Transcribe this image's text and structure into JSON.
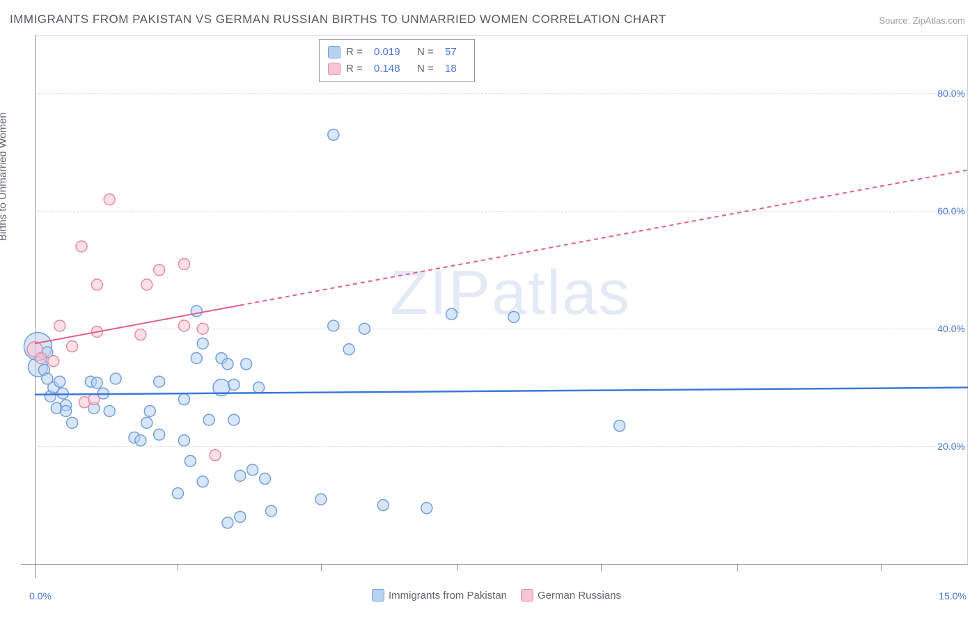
{
  "title": "IMMIGRANTS FROM PAKISTAN VS GERMAN RUSSIAN BIRTHS TO UNMARRIED WOMEN CORRELATION CHART",
  "source": "Source: ZipAtlas.com",
  "watermark_a": "ZIP",
  "watermark_b": "atlas",
  "chart": {
    "type": "scatter",
    "background_color": "#ffffff",
    "grid_color": "#dcdfe3",
    "axis_color": "#888e96",
    "y_axis_title": "Births to Unmarried Women",
    "xlim": [
      0.0,
      15.0
    ],
    "ylim": [
      0.0,
      90.0
    ],
    "y_ticks": [
      20.0,
      40.0,
      60.0,
      80.0
    ],
    "y_tick_labels": [
      "20.0%",
      "40.0%",
      "60.0%",
      "80.0%"
    ],
    "x_tick_positions": [
      2.3,
      4.6,
      6.8,
      9.1,
      11.3,
      13.6
    ],
    "x_start_label": "0.0%",
    "x_end_label": "15.0%",
    "x_label_color": "#4876d6",
    "marker_radius": 8,
    "marker_stroke_width": 1.5,
    "series": [
      {
        "name": "Immigrants from Pakistan",
        "fill": "#b9d2f0",
        "stroke": "#6f9fde",
        "fill_opacity": 0.55,
        "trend_color": "#3b78d8",
        "trend_width": 2.5,
        "trend_dash": "none",
        "trend_p1": [
          0.0,
          28.8
        ],
        "trend_p2": [
          15.0,
          30.0
        ],
        "R": "0.019",
        "N": "57",
        "points": [
          [
            0.05,
            33.5,
            14
          ],
          [
            0.05,
            37.0,
            20
          ],
          [
            0.15,
            33.0,
            8
          ],
          [
            0.2,
            31.5,
            8
          ],
          [
            0.2,
            36.0,
            8
          ],
          [
            0.25,
            28.5,
            8
          ],
          [
            0.3,
            30.0,
            8
          ],
          [
            0.35,
            26.5,
            8
          ],
          [
            0.4,
            31.0,
            8
          ],
          [
            0.45,
            29.0,
            8
          ],
          [
            0.5,
            27.0,
            8
          ],
          [
            0.5,
            26.0,
            8
          ],
          [
            0.6,
            24.0,
            8
          ],
          [
            0.9,
            31.0,
            8
          ],
          [
            0.95,
            26.5,
            8
          ],
          [
            1.0,
            30.8,
            8
          ],
          [
            1.1,
            29.0,
            8
          ],
          [
            1.2,
            26.0,
            8
          ],
          [
            1.3,
            31.5,
            8
          ],
          [
            1.6,
            21.5,
            8
          ],
          [
            1.7,
            21.0,
            8
          ],
          [
            1.8,
            24.0,
            8
          ],
          [
            1.85,
            26.0,
            8
          ],
          [
            2.0,
            22.0,
            8
          ],
          [
            2.0,
            31.0,
            8
          ],
          [
            2.3,
            12.0,
            8
          ],
          [
            2.4,
            21.0,
            8
          ],
          [
            2.4,
            28.0,
            8
          ],
          [
            2.5,
            17.5,
            8
          ],
          [
            2.6,
            43.0,
            8
          ],
          [
            2.6,
            35.0,
            8
          ],
          [
            2.7,
            37.5,
            8
          ],
          [
            2.7,
            14.0,
            8
          ],
          [
            2.8,
            24.5,
            8
          ],
          [
            3.0,
            35.0,
            8
          ],
          [
            3.0,
            30.0,
            12
          ],
          [
            3.1,
            34.0,
            8
          ],
          [
            3.1,
            7.0,
            8
          ],
          [
            3.2,
            24.5,
            8
          ],
          [
            3.2,
            30.5,
            8
          ],
          [
            3.3,
            15.0,
            8
          ],
          [
            3.3,
            8.0,
            8
          ],
          [
            3.4,
            34.0,
            8
          ],
          [
            3.5,
            16.0,
            8
          ],
          [
            3.6,
            30.0,
            8
          ],
          [
            3.7,
            14.5,
            8
          ],
          [
            3.8,
            9.0,
            8
          ],
          [
            4.6,
            11.0,
            8
          ],
          [
            4.8,
            40.5,
            8
          ],
          [
            4.8,
            73.0,
            8
          ],
          [
            5.05,
            36.5,
            8
          ],
          [
            5.3,
            40.0,
            8
          ],
          [
            5.6,
            10.0,
            8
          ],
          [
            6.3,
            9.5,
            8
          ],
          [
            6.7,
            42.5,
            8
          ],
          [
            7.7,
            42.0,
            8
          ],
          [
            9.4,
            23.5,
            8
          ]
        ]
      },
      {
        "name": "German Russians",
        "fill": "#f6c6d4",
        "stroke": "#e88aa3",
        "fill_opacity": 0.55,
        "trend_color": "#e06088",
        "trend_width": 2,
        "trend_dash": "6 5",
        "trend_solid_until": 3.3,
        "trend_p1": [
          0.0,
          37.5
        ],
        "trend_p2": [
          15.0,
          67.0
        ],
        "R": "0.148",
        "N": "18",
        "points": [
          [
            0.0,
            36.5,
            11
          ],
          [
            0.1,
            35.0,
            8
          ],
          [
            0.3,
            34.5,
            8
          ],
          [
            0.4,
            40.5,
            8
          ],
          [
            0.6,
            37.0,
            8
          ],
          [
            0.75,
            54.0,
            8
          ],
          [
            0.8,
            27.5,
            8
          ],
          [
            0.95,
            28.0,
            8
          ],
          [
            1.0,
            47.5,
            8
          ],
          [
            1.0,
            39.5,
            8
          ],
          [
            1.2,
            62.0,
            8
          ],
          [
            1.7,
            39.0,
            8
          ],
          [
            1.8,
            47.5,
            8
          ],
          [
            2.0,
            50.0,
            8
          ],
          [
            2.4,
            51.0,
            8
          ],
          [
            2.4,
            40.5,
            8
          ],
          [
            2.7,
            40.0,
            8
          ],
          [
            2.9,
            18.5,
            8
          ]
        ]
      }
    ],
    "top_legend_rows": [
      {
        "series_idx": 0
      },
      {
        "series_idx": 1
      }
    ],
    "bottom_legend": [
      {
        "series_idx": 0
      },
      {
        "series_idx": 1
      }
    ]
  }
}
